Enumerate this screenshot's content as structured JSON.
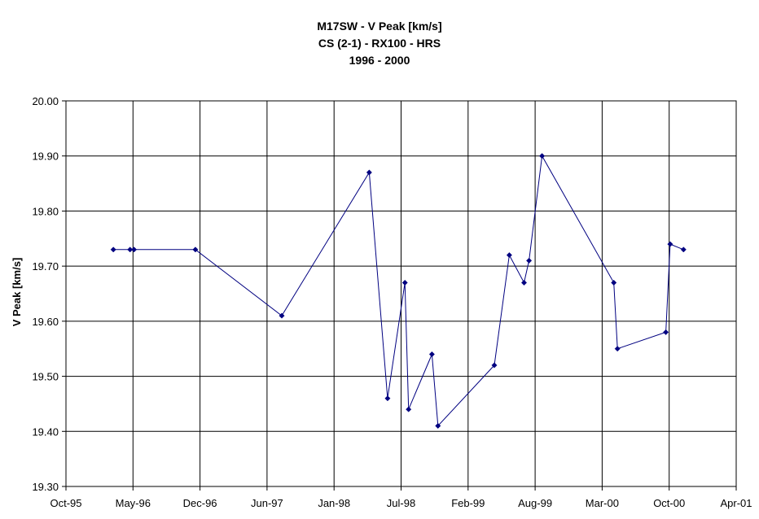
{
  "chart_data": {
    "type": "line",
    "title": [
      "M17SW - V Peak [km/s]",
      "CS (2-1) - RX100 - HRS",
      "1996 - 2000"
    ],
    "xlabel": "",
    "ylabel": "V Peak [km/s]",
    "x_ticks": [
      "Oct-95",
      "May-96",
      "Dec-96",
      "Jun-97",
      "Jan-98",
      "Jul-98",
      "Feb-99",
      "Aug-99",
      "Mar-00",
      "Oct-00",
      "Apr-01"
    ],
    "y_ticks": [
      "19.30",
      "19.40",
      "19.50",
      "19.60",
      "19.70",
      "19.80",
      "19.90",
      "20.00"
    ],
    "ylim": [
      19.3,
      20.0
    ],
    "xlim": [
      "1995-10-01",
      "2001-04-01"
    ],
    "grid": true,
    "legend": "none",
    "series": [
      {
        "color": "#000080",
        "points": [
          {
            "x": "1996-02-20",
            "y": 19.73
          },
          {
            "x": "1996-04-10",
            "y": 19.73
          },
          {
            "x": "1996-04-22",
            "y": 19.73
          },
          {
            "x": "1996-10-23",
            "y": 19.73
          },
          {
            "x": "1997-07-09",
            "y": 19.61
          },
          {
            "x": "1998-03-28",
            "y": 19.87
          },
          {
            "x": "1998-05-22",
            "y": 19.46
          },
          {
            "x": "1998-07-13",
            "y": 19.67
          },
          {
            "x": "1998-07-24",
            "y": 19.44
          },
          {
            "x": "1998-10-02",
            "y": 19.54
          },
          {
            "x": "1998-10-20",
            "y": 19.41
          },
          {
            "x": "1999-04-07",
            "y": 19.52
          },
          {
            "x": "1999-05-22",
            "y": 19.72
          },
          {
            "x": "1999-07-05",
            "y": 19.67
          },
          {
            "x": "1999-07-20",
            "y": 19.71
          },
          {
            "x": "1999-08-28",
            "y": 19.9
          },
          {
            "x": "2000-03-30",
            "y": 19.67
          },
          {
            "x": "2000-04-10",
            "y": 19.55
          },
          {
            "x": "2000-09-02",
            "y": 19.58
          },
          {
            "x": "2000-09-15",
            "y": 19.74
          },
          {
            "x": "2000-10-25",
            "y": 19.73
          }
        ]
      }
    ]
  }
}
